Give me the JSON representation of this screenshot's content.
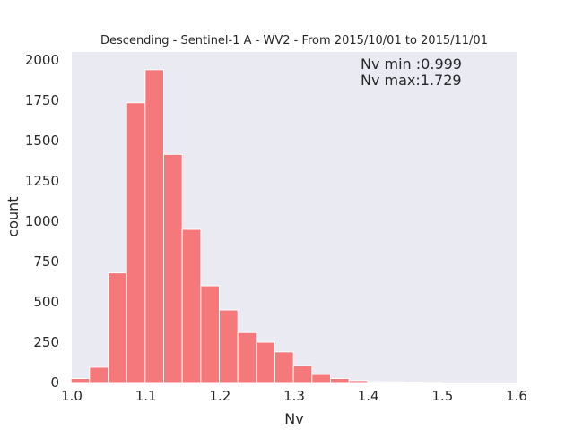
{
  "chart_data": {
    "type": "bar",
    "title": "Descending - Sentinel-1 A - WV2 - From 2015/10/01 to 2015/11/01",
    "xlabel": "Nv",
    "ylabel": "count",
    "xlim": [
      1.0,
      1.6
    ],
    "ylim": [
      0,
      2050
    ],
    "xticks": [
      "1.0",
      "1.1",
      "1.2",
      "1.3",
      "1.4",
      "1.5",
      "1.6"
    ],
    "yticks": [
      "0",
      "250",
      "500",
      "750",
      "1000",
      "1250",
      "1500",
      "1750",
      "2000"
    ],
    "bin_width": 0.025,
    "bins": [
      {
        "x0": 0.999,
        "count": 25
      },
      {
        "x0": 1.024,
        "count": 95
      },
      {
        "x0": 1.049,
        "count": 680
      },
      {
        "x0": 1.074,
        "count": 1735
      },
      {
        "x0": 1.099,
        "count": 1940
      },
      {
        "x0": 1.124,
        "count": 1415
      },
      {
        "x0": 1.149,
        "count": 950
      },
      {
        "x0": 1.174,
        "count": 600
      },
      {
        "x0": 1.199,
        "count": 450
      },
      {
        "x0": 1.224,
        "count": 310
      },
      {
        "x0": 1.249,
        "count": 250
      },
      {
        "x0": 1.274,
        "count": 190
      },
      {
        "x0": 1.299,
        "count": 105
      },
      {
        "x0": 1.324,
        "count": 50
      },
      {
        "x0": 1.349,
        "count": 25
      },
      {
        "x0": 1.374,
        "count": 12
      },
      {
        "x0": 1.399,
        "count": 6
      },
      {
        "x0": 1.424,
        "count": 4
      },
      {
        "x0": 1.449,
        "count": 2
      },
      {
        "x0": 1.474,
        "count": 1
      }
    ],
    "bar_color": "#f5787a",
    "plot_background": "#eaeaf2",
    "grid": false,
    "annotations": [
      "Nv min :0.999",
      "Nv max:1.729"
    ]
  }
}
